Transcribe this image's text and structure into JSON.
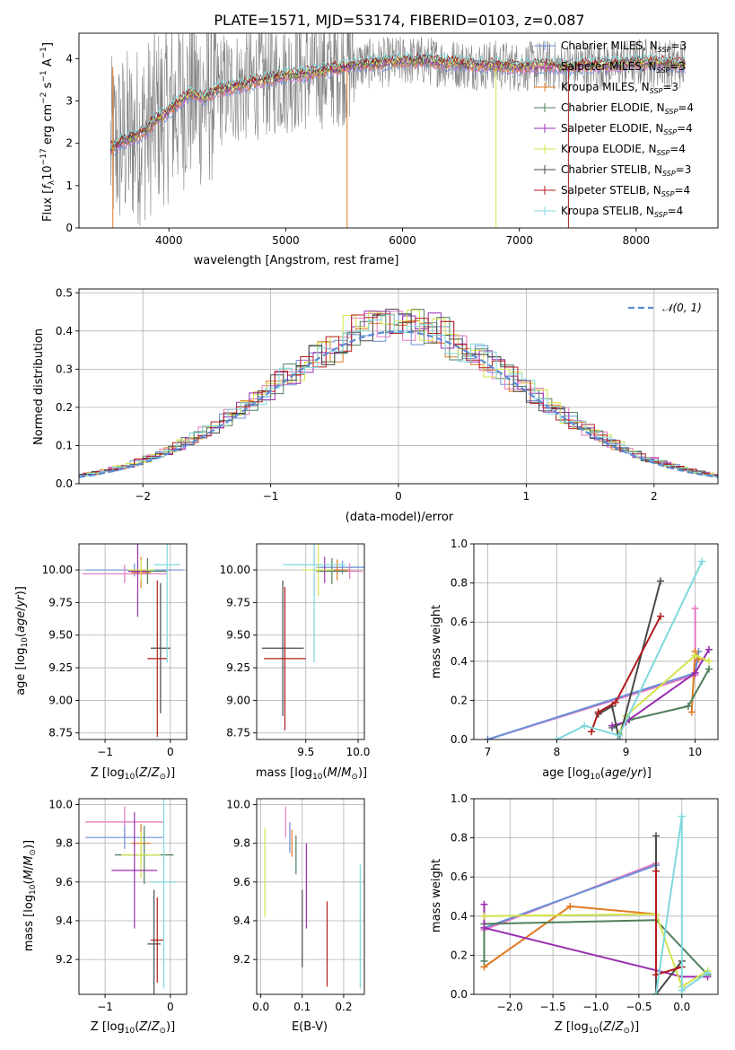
{
  "figure_title": "PLATE=1571, MJD=53174, FIBERID=0103, z=0.087",
  "colors": {
    "chabrier_miles": "#6a8fd6",
    "salpeter_miles": "#e377c2",
    "kroupa_miles": "#e07b22",
    "chabrier_elodie": "#4f7f5a",
    "salpeter_elodie": "#9a2fb0",
    "kroupa_elodie": "#d4e34a",
    "chabrier_stelib": "#4a4a4a",
    "salpeter_stelib": "#b01c1c",
    "kroupa_stelib": "#7fd8dc",
    "data": "#808080",
    "normal": "#5b8bd6"
  },
  "legend_entries": [
    {
      "key": "chabrier_miles",
      "label": "Chabrier MILES, N",
      "sub": "SSP",
      "tail": "=3"
    },
    {
      "key": "salpeter_miles",
      "label": "Salpeter MILES, N",
      "sub": "SSP",
      "tail": "=3"
    },
    {
      "key": "kroupa_miles",
      "label": "Kroupa MILES, N",
      "sub": "SSP",
      "tail": "=3"
    },
    {
      "key": "chabrier_elodie",
      "label": "Chabrier ELODIE, N",
      "sub": "SSP",
      "tail": "=4"
    },
    {
      "key": "salpeter_elodie",
      "label": "Salpeter ELODIE, N",
      "sub": "SSP",
      "tail": "=4"
    },
    {
      "key": "kroupa_elodie",
      "label": "Kroupa ELODIE, N",
      "sub": "SSP",
      "tail": "=4"
    },
    {
      "key": "chabrier_stelib",
      "label": "Chabrier STELIB, N",
      "sub": "SSP",
      "tail": "=3"
    },
    {
      "key": "salpeter_stelib",
      "label": "Salpeter STELIB, N",
      "sub": "SSP",
      "tail": "=4"
    },
    {
      "key": "kroupa_stelib",
      "label": "Kroupa STELIB, N",
      "sub": "SSP",
      "tail": "=4"
    }
  ],
  "chart_data": [
    {
      "id": "spectrum",
      "type": "line",
      "xlabel": "wavelength [Angstrom, rest frame]",
      "ylabel": "Flux [f_λ 10^-17 erg cm^-2 s^-1 A^-1]",
      "xlim": [
        3230,
        8700
      ],
      "ylim": [
        0,
        4.6
      ],
      "xticks": [
        4000,
        5000,
        6000,
        7000,
        8000
      ],
      "yticks": [
        0,
        1,
        2,
        3,
        4
      ],
      "grid": false,
      "legend": "top-right",
      "model_continuum": {
        "x": [
          3500,
          3600,
          3700,
          3800,
          3900,
          4000,
          4100,
          4200,
          4300,
          4400,
          4600,
          4800,
          5000,
          5200,
          5400,
          5600,
          5800,
          6000,
          6200,
          6400,
          6600,
          6800,
          7000,
          7200,
          7400,
          7600,
          7800,
          8000,
          8200,
          8400
        ],
        "y": [
          1.85,
          2.05,
          2.15,
          2.3,
          2.6,
          2.75,
          3.0,
          3.2,
          3.05,
          3.25,
          3.35,
          3.5,
          3.6,
          3.65,
          3.75,
          3.85,
          3.9,
          3.95,
          3.95,
          3.9,
          3.85,
          3.85,
          3.8,
          3.85,
          3.8,
          3.85,
          3.85,
          3.9,
          3.9,
          3.85
        ]
      }
    },
    {
      "id": "residuals",
      "type": "line",
      "xlabel": "(data-model)/error",
      "ylabel": "Normed distribution",
      "xlim": [
        -2.5,
        2.5
      ],
      "ylim": [
        0,
        0.51
      ],
      "xticks": [
        -2,
        -1,
        0,
        1,
        2
      ],
      "yticks": [
        0.0,
        0.1,
        0.2,
        0.3,
        0.4,
        0.5
      ],
      "grid": true,
      "legend": "top-right",
      "series": [
        {
          "name": "N(0,1)",
          "mean": 0,
          "sigma": 1
        }
      ]
    },
    {
      "id": "age_vs_Z",
      "type": "scatter",
      "xlabel": "Z [log10(Z/Z⊙)]",
      "ylabel": "age  [log10(age/yr)]",
      "xlim": [
        -1.4,
        0.25
      ],
      "ylim": [
        8.7,
        10.2
      ],
      "xticks": [
        -1,
        0
      ],
      "yticks": [
        8.75,
        9.0,
        9.25,
        9.5,
        9.75,
        10.0
      ],
      "grid": true,
      "points": [
        {
          "model": "chabrier_miles",
          "x": -0.55,
          "xerr": 0.75,
          "y": 10.0,
          "yerr": 0.05
        },
        {
          "model": "salpeter_miles",
          "x": -0.7,
          "xerr": 0.65,
          "y": 9.97,
          "yerr": 0.07
        },
        {
          "model": "kroupa_miles",
          "x": -0.45,
          "xerr": 0.15,
          "y": 9.98,
          "yerr": 0.12
        },
        {
          "model": "chabrier_elodie",
          "x": -0.35,
          "xerr": 0.3,
          "y": 9.99,
          "yerr": 0.1
        },
        {
          "model": "salpeter_elodie",
          "x": -0.5,
          "xerr": 0.15,
          "y": 9.99,
          "yerr": 0.35
        },
        {
          "model": "kroupa_elodie",
          "x": -0.45,
          "xerr": 0.2,
          "y": 10.0,
          "yerr": 0.08
        },
        {
          "model": "chabrier_stelib",
          "x": -0.15,
          "xerr": 0.15,
          "y": 9.4,
          "yerr": 0.5
        },
        {
          "model": "salpeter_stelib",
          "x": -0.2,
          "xerr": 0.15,
          "y": 9.32,
          "yerr": 0.6
        },
        {
          "model": "kroupa_stelib",
          "x": -0.05,
          "xerr": 0.2,
          "y": 10.04,
          "yerr": 0.75
        }
      ]
    },
    {
      "id": "age_vs_mass",
      "type": "scatter",
      "xlabel": "mass [log10(M/M⊙)]",
      "ylabel": "",
      "xlim": [
        9.03,
        10.06
      ],
      "ylim": [
        8.7,
        10.2
      ],
      "xticks": [
        9.5,
        10.0
      ],
      "yticks": [
        8.75,
        9.0,
        9.25,
        9.5,
        9.75,
        10.0
      ],
      "grid": true,
      "points": [
        {
          "model": "chabrier_miles",
          "x": 9.85,
          "xerr": 0.25,
          "y": 10.02,
          "yerr": 0.05
        },
        {
          "model": "salpeter_miles",
          "x": 9.92,
          "xerr": 0.12,
          "y": 9.99,
          "yerr": 0.06
        },
        {
          "model": "kroupa_miles",
          "x": 9.8,
          "xerr": 0.12,
          "y": 10.0,
          "yerr": 0.08
        },
        {
          "model": "chabrier_elodie",
          "x": 9.75,
          "xerr": 0.15,
          "y": 9.99,
          "yerr": 0.1
        },
        {
          "model": "salpeter_elodie",
          "x": 9.68,
          "xerr": 0.1,
          "y": 10.0,
          "yerr": 0.1
        },
        {
          "model": "kroupa_elodie",
          "x": 9.62,
          "xerr": 0.15,
          "y": 10.0,
          "yerr": 0.2
        },
        {
          "model": "chabrier_stelib",
          "x": 9.28,
          "xerr": 0.2,
          "y": 9.4,
          "yerr": 0.52
        },
        {
          "model": "salpeter_stelib",
          "x": 9.3,
          "xerr": 0.2,
          "y": 9.32,
          "yerr": 0.55
        },
        {
          "model": "kroupa_stelib",
          "x": 9.58,
          "xerr": 0.3,
          "y": 10.04,
          "yerr": 0.75
        }
      ]
    },
    {
      "id": "mass_weight_vs_age",
      "type": "line",
      "xlabel": "age  [log10(age/yr)]",
      "ylabel": "mass weight",
      "xlim": [
        6.8,
        10.33
      ],
      "ylim": [
        0,
        1.0
      ],
      "xticks": [
        7,
        8,
        9,
        10
      ],
      "yticks": [
        0.0,
        0.2,
        0.4,
        0.6,
        0.8,
        1.0
      ],
      "grid": true,
      "series": [
        {
          "model": "salpeter_miles",
          "x": [
            7.0,
            10.0,
            10.0
          ],
          "y": [
            0.0,
            0.33,
            0.67
          ]
        },
        {
          "model": "chabrier_miles",
          "x": [
            7.0,
            10.0,
            10.05
          ],
          "y": [
            0.0,
            0.34,
            0.45
          ]
        },
        {
          "model": "kroupa_miles",
          "x": [
            9.95,
            10.0,
            10.05
          ],
          "y": [
            0.14,
            0.45,
            0.41
          ]
        },
        {
          "model": "chabrier_elodie",
          "x": [
            8.8,
            9.05,
            9.9,
            10.2
          ],
          "y": [
            0.06,
            0.1,
            0.17,
            0.36
          ]
        },
        {
          "model": "salpeter_elodie",
          "x": [
            8.8,
            9.0,
            10.0,
            10.2
          ],
          "y": [
            0.07,
            0.09,
            0.34,
            0.46
          ]
        },
        {
          "model": "kroupa_elodie",
          "x": [
            8.9,
            9.0,
            10.0,
            10.2
          ],
          "y": [
            0.03,
            0.12,
            0.43,
            0.4
          ]
        },
        {
          "model": "chabrier_stelib",
          "x": [
            8.6,
            8.8,
            8.9,
            9.5
          ],
          "y": [
            0.13,
            0.17,
            0.0,
            0.81
          ]
        },
        {
          "model": "salpeter_stelib",
          "x": [
            8.5,
            8.6,
            8.85,
            9.5
          ],
          "y": [
            0.04,
            0.14,
            0.19,
            0.63
          ]
        },
        {
          "model": "kroupa_stelib",
          "x": [
            8.0,
            8.4,
            8.9,
            10.1
          ],
          "y": [
            0.0,
            0.07,
            0.02,
            0.91
          ]
        }
      ]
    },
    {
      "id": "mass_vs_Z",
      "type": "scatter",
      "xlabel": "Z [log10(Z/Z⊙)]",
      "ylabel": "mass [log10(M/M⊙)]",
      "xlim": [
        -1.4,
        0.25
      ],
      "ylim": [
        9.02,
        10.03
      ],
      "xticks": [
        -1,
        0
      ],
      "yticks": [
        9.2,
        9.4,
        9.6,
        9.8,
        10.0
      ],
      "grid": true,
      "points": [
        {
          "model": "salpeter_miles",
          "x": -0.7,
          "xerr": 0.6,
          "y": 9.91,
          "yerr": 0.08
        },
        {
          "model": "chabrier_miles",
          "x": -0.7,
          "xerr": 0.6,
          "y": 9.83,
          "yerr": 0.06
        },
        {
          "model": "kroupa_miles",
          "x": -0.45,
          "xerr": 0.15,
          "y": 9.8,
          "yerr": 0.1
        },
        {
          "model": "chabrier_elodie",
          "x": -0.4,
          "xerr": 0.45,
          "y": 9.74,
          "yerr": 0.15
        },
        {
          "model": "kroupa_elodie",
          "x": -0.45,
          "xerr": 0.3,
          "y": 9.74,
          "yerr": 0.12
        },
        {
          "model": "salpeter_elodie",
          "x": -0.55,
          "xerr": 0.35,
          "y": 9.66,
          "yerr": 0.3
        },
        {
          "model": "chabrier_stelib",
          "x": -0.25,
          "xerr": 0.1,
          "y": 9.28,
          "yerr": 0.28
        },
        {
          "model": "salpeter_stelib",
          "x": -0.2,
          "xerr": 0.1,
          "y": 9.3,
          "yerr": 0.22
        },
        {
          "model": "kroupa_stelib",
          "x": -0.1,
          "xerr": 0.2,
          "y": 9.6,
          "yerr": 0.55
        }
      ]
    },
    {
      "id": "mass_vs_EBV",
      "type": "scatter",
      "xlabel": "E(B-V)",
      "ylabel": "",
      "xlim": [
        -0.01,
        0.25
      ],
      "ylim": [
        9.02,
        10.03
      ],
      "xticks": [
        0.0,
        0.1,
        0.2
      ],
      "yticks": [
        9.2,
        9.4,
        9.6,
        9.8,
        10.0
      ],
      "grid": true,
      "points": [
        {
          "model": "kroupa_elodie",
          "x": 0.01,
          "y": 9.65,
          "yerr": 0.23
        },
        {
          "model": "salpeter_miles",
          "x": 0.06,
          "y": 9.91,
          "yerr": 0.08
        },
        {
          "model": "chabrier_miles",
          "x": 0.07,
          "y": 9.83,
          "yerr": 0.08
        },
        {
          "model": "kroupa_miles",
          "x": 0.075,
          "y": 9.8,
          "yerr": 0.07
        },
        {
          "model": "chabrier_stelib",
          "x": 0.1,
          "y": 9.36,
          "yerr": 0.2
        },
        {
          "model": "salpeter_elodie",
          "x": 0.11,
          "y": 9.58,
          "yerr": 0.22
        },
        {
          "model": "chabrier_elodie",
          "x": 0.085,
          "y": 9.74,
          "yerr": 0.1
        },
        {
          "model": "salpeter_stelib",
          "x": 0.16,
          "y": 9.28,
          "yerr": 0.22
        },
        {
          "model": "kroupa_stelib",
          "x": 0.24,
          "y": 9.37,
          "yerr": 0.32
        }
      ]
    },
    {
      "id": "mass_weight_vs_Z",
      "type": "line",
      "xlabel": "Z [log10(Z/Z⊙)]",
      "ylabel": "mass weight",
      "xlim": [
        -2.42,
        0.42
      ],
      "ylim": [
        0,
        1.0
      ],
      "xticks": [
        -2.0,
        -1.5,
        -1.0,
        -0.5,
        0.0
      ],
      "yticks": [
        0.0,
        0.2,
        0.4,
        0.6,
        0.8,
        1.0
      ],
      "grid": true,
      "series": [
        {
          "model": "salpeter_miles",
          "x": [
            -2.3,
            -0.3,
            -0.3
          ],
          "y": [
            0.33,
            0.67,
            0.0
          ]
        },
        {
          "model": "chabrier_miles",
          "x": [
            -2.3,
            -0.3,
            -0.3
          ],
          "y": [
            0.34,
            0.66,
            0.0
          ]
        },
        {
          "model": "kroupa_miles",
          "x": [
            -2.3,
            -1.3,
            -0.3,
            -0.3
          ],
          "y": [
            0.14,
            0.45,
            0.41,
            0.0
          ]
        },
        {
          "model": "chabrier_elodie",
          "x": [
            -2.3,
            -2.3,
            -0.3,
            0.3
          ],
          "y": [
            0.17,
            0.36,
            0.38,
            0.1
          ]
        },
        {
          "model": "salpeter_elodie",
          "x": [
            -2.3,
            -2.3,
            0.0,
            0.3
          ],
          "y": [
            0.46,
            0.34,
            0.09,
            0.09
          ]
        },
        {
          "model": "kroupa_elodie",
          "x": [
            -2.3,
            -0.3,
            0.0,
            0.3
          ],
          "y": [
            0.4,
            0.41,
            0.04,
            0.12
          ]
        },
        {
          "model": "chabrier_stelib",
          "x": [
            -0.3,
            -0.3,
            0.0
          ],
          "y": [
            0.81,
            0.0,
            0.17
          ]
        },
        {
          "model": "salpeter_stelib",
          "x": [
            -0.3,
            -0.3,
            0.0
          ],
          "y": [
            0.63,
            0.1,
            0.14
          ]
        },
        {
          "model": "kroupa_stelib",
          "x": [
            -0.3,
            0.0,
            0.0,
            0.3
          ],
          "y": [
            0.0,
            0.91,
            0.02,
            0.11
          ]
        }
      ]
    }
  ]
}
